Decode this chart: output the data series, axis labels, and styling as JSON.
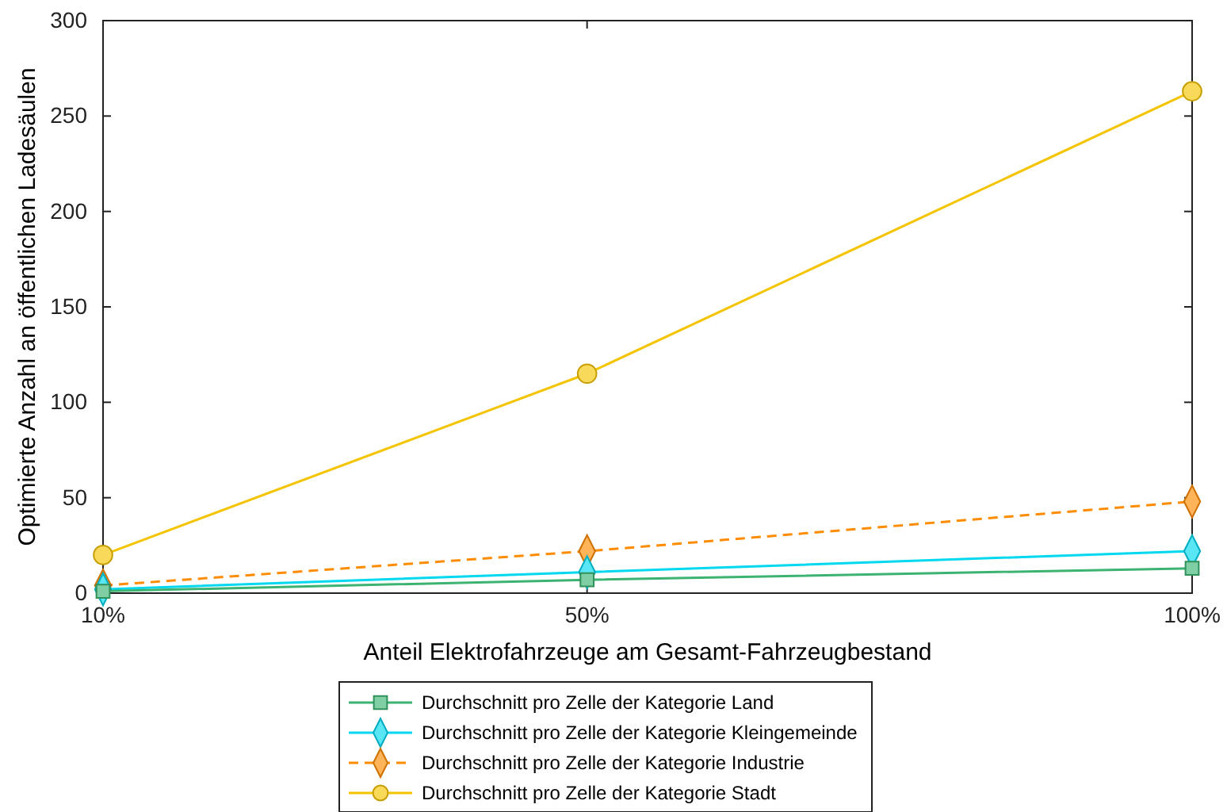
{
  "chart_data": {
    "type": "line",
    "xlabel": "Anteil Elektrofahrzeuge am Gesamt-Fahrzeugbestand",
    "ylabel": "Optimierte Anzahl an öffentlichen Ladesäulen",
    "x": [
      10,
      50,
      100
    ],
    "xlim": [
      10,
      100
    ],
    "xticks": [
      {
        "value": 10,
        "label": "10%"
      },
      {
        "value": 50,
        "label": "50%"
      },
      {
        "value": 100,
        "label": "100%"
      }
    ],
    "ylim": [
      0,
      300
    ],
    "yticks": [
      0,
      50,
      100,
      150,
      200,
      250,
      300
    ],
    "grid": false,
    "legend": "bottom",
    "series": [
      {
        "name": "Durchschnitt pro Zelle der Kategorie Land",
        "color": "#3cb371",
        "marker": "square",
        "line_style": "solid",
        "values": [
          1,
          7,
          13
        ]
      },
      {
        "name": "Durchschnitt pro Zelle der Kategorie Kleingemeinde",
        "color": "#00d8f0",
        "marker": "diamond",
        "line_style": "solid",
        "values": [
          2,
          11,
          22
        ]
      },
      {
        "name": "Durchschnitt pro Zelle der Kategorie Industrie",
        "color": "#ff8c00",
        "marker": "diamond",
        "line_style": "dashed",
        "values": [
          4,
          22,
          48
        ]
      },
      {
        "name": "Durchschnitt pro Zelle der Kategorie Stadt",
        "color": "#f5c400",
        "marker": "circle",
        "line_style": "solid",
        "values": [
          20,
          115,
          263
        ]
      }
    ]
  }
}
